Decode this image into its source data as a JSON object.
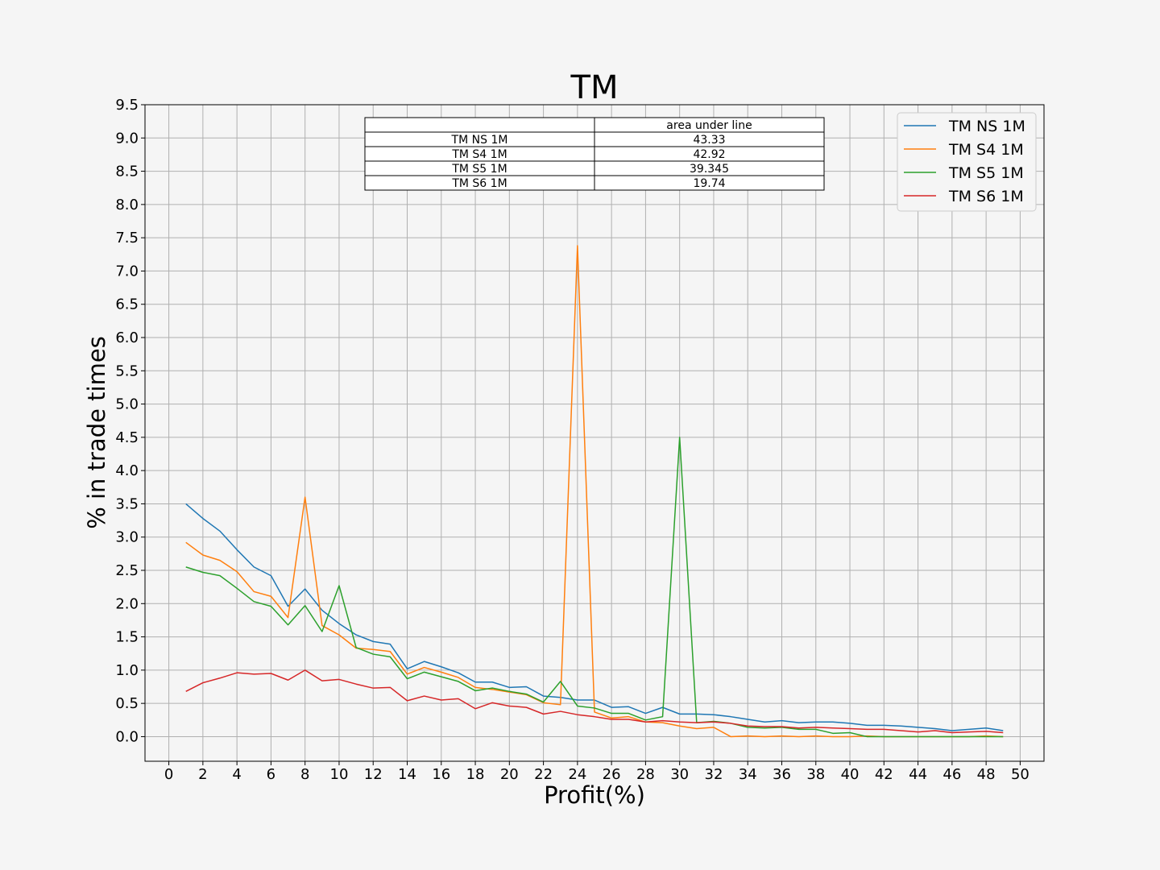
{
  "chart_data": {
    "type": "line",
    "title": "TM",
    "xlabel": "Profit(%)",
    "ylabel": "% in trade times",
    "xlim": [
      -1.4,
      51.4
    ],
    "ylim": [
      -0.37,
      9.5
    ],
    "xticks": [
      0,
      2,
      4,
      6,
      8,
      10,
      12,
      14,
      16,
      18,
      20,
      22,
      24,
      26,
      28,
      30,
      32,
      34,
      36,
      38,
      40,
      42,
      44,
      46,
      48,
      50
    ],
    "yticks": [
      0.0,
      0.5,
      1.0,
      1.5,
      2.0,
      2.5,
      3.0,
      3.5,
      4.0,
      4.5,
      5.0,
      5.5,
      6.0,
      6.5,
      7.0,
      7.5,
      8.0,
      8.5,
      9.0,
      9.5
    ],
    "grid": true,
    "legend_position": "top-right",
    "x": [
      1,
      2,
      3,
      4,
      5,
      6,
      7,
      8,
      9,
      10,
      11,
      12,
      13,
      14,
      15,
      16,
      17,
      18,
      19,
      20,
      21,
      22,
      23,
      24,
      25,
      26,
      27,
      28,
      29,
      30,
      31,
      32,
      33,
      34,
      35,
      36,
      37,
      38,
      39,
      40,
      41,
      42,
      43,
      44,
      45,
      46,
      47,
      48,
      49
    ],
    "series": [
      {
        "name": "TM NS 1M",
        "color": "#1f77b4",
        "values": [
          3.5,
          3.28,
          3.09,
          2.81,
          2.55,
          2.42,
          1.96,
          2.22,
          1.9,
          1.7,
          1.53,
          1.43,
          1.39,
          1.02,
          1.13,
          1.05,
          0.96,
          0.82,
          0.82,
          0.74,
          0.75,
          0.61,
          0.59,
          0.55,
          0.55,
          0.44,
          0.45,
          0.35,
          0.44,
          0.34,
          0.34,
          0.33,
          0.3,
          0.26,
          0.22,
          0.24,
          0.21,
          0.22,
          0.22,
          0.2,
          0.17,
          0.17,
          0.16,
          0.14,
          0.12,
          0.09,
          0.11,
          0.13,
          0.09
        ]
      },
      {
        "name": "TM S4 1M",
        "color": "#ff7f0e",
        "values": [
          2.92,
          2.73,
          2.65,
          2.48,
          2.18,
          2.11,
          1.79,
          3.6,
          1.67,
          1.53,
          1.33,
          1.31,
          1.28,
          0.94,
          1.04,
          0.97,
          0.89,
          0.74,
          0.71,
          0.67,
          0.63,
          0.51,
          0.48,
          7.38,
          0.37,
          0.28,
          0.3,
          0.22,
          0.21,
          0.16,
          0.12,
          0.14,
          0.0,
          0.01,
          0.0,
          0.01,
          0.0,
          0.01,
          0.0,
          0.0,
          0.01,
          0.0,
          0.0,
          0.0,
          0.0,
          0.0,
          0.0,
          0.01,
          0.0
        ]
      },
      {
        "name": "TM S5 1M",
        "color": "#2ca02c",
        "values": [
          2.55,
          2.47,
          2.42,
          2.23,
          2.03,
          1.96,
          1.68,
          1.97,
          1.58,
          2.27,
          1.34,
          1.24,
          1.2,
          0.87,
          0.97,
          0.9,
          0.83,
          0.69,
          0.73,
          0.68,
          0.64,
          0.52,
          0.83,
          0.46,
          0.43,
          0.35,
          0.35,
          0.25,
          0.3,
          4.5,
          0.21,
          0.23,
          0.2,
          0.14,
          0.13,
          0.14,
          0.11,
          0.11,
          0.05,
          0.06,
          0.0,
          0.0,
          0.0,
          0.0,
          0.0,
          0.0,
          0.0,
          0.0,
          0.0
        ]
      },
      {
        "name": "TM S6 1M",
        "color": "#d62728",
        "values": [
          0.68,
          0.81,
          0.88,
          0.96,
          0.94,
          0.95,
          0.85,
          1.0,
          0.84,
          0.86,
          0.79,
          0.73,
          0.74,
          0.54,
          0.61,
          0.55,
          0.57,
          0.42,
          0.51,
          0.46,
          0.44,
          0.34,
          0.38,
          0.33,
          0.3,
          0.26,
          0.26,
          0.22,
          0.24,
          0.22,
          0.21,
          0.22,
          0.2,
          0.16,
          0.15,
          0.15,
          0.13,
          0.14,
          0.13,
          0.12,
          0.11,
          0.11,
          0.09,
          0.07,
          0.09,
          0.06,
          0.07,
          0.08,
          0.06
        ]
      }
    ],
    "table": {
      "header": [
        "",
        "area under line"
      ],
      "rows": [
        [
          "TM NS 1M",
          "43.33"
        ],
        [
          "TM S4 1M",
          "42.92"
        ],
        [
          "TM S5 1M",
          "39.345"
        ],
        [
          "TM S6 1M",
          "19.74"
        ]
      ]
    }
  }
}
